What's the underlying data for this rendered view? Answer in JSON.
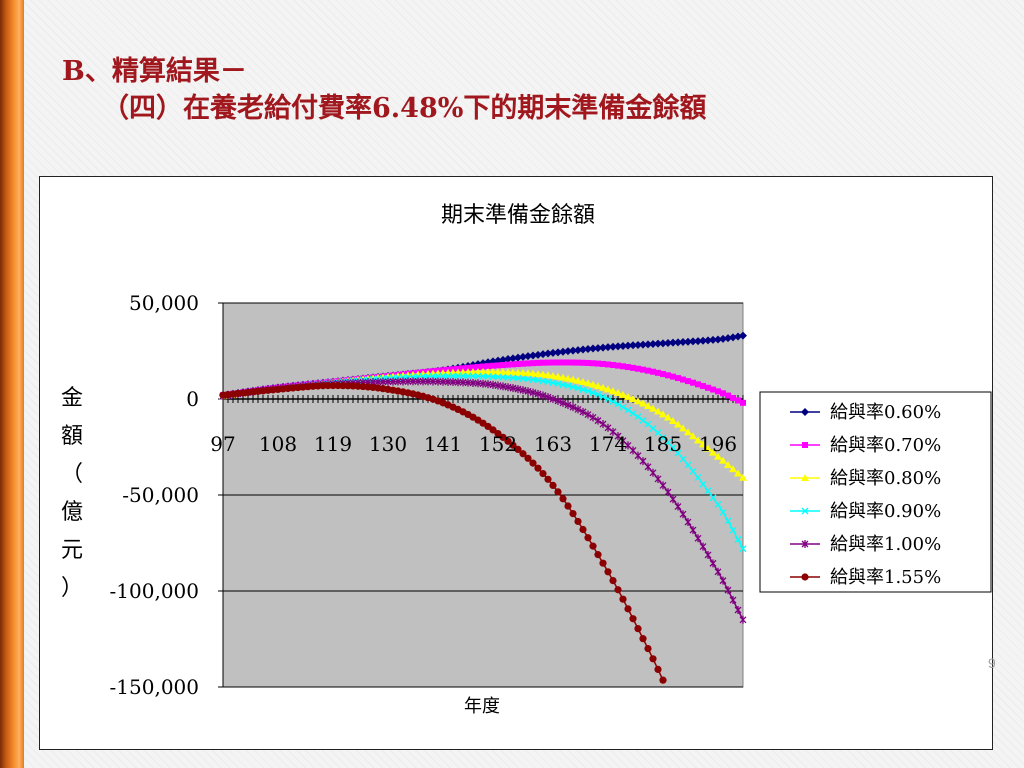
{
  "slide": {
    "title_line1": "B、精算結果－",
    "title_line2": "（四）在養老給付費率6.48%下的期末準備金餘額",
    "page_number": "9",
    "accent_color": "#a0181e"
  },
  "chart_data": {
    "type": "line",
    "title": "期末準備金餘額",
    "xlabel": "年度",
    "ylabel": "金額（億元）",
    "x_tick_labels": [
      "97",
      "108",
      "119",
      "130",
      "141",
      "152",
      "163",
      "174",
      "185",
      "196"
    ],
    "x_range": [
      97,
      201
    ],
    "y_tick_labels": [
      "50,000",
      "0",
      "-50,000",
      "-100,000",
      "-150,000"
    ],
    "y_ticks": [
      50000,
      0,
      -50000,
      -100000,
      -150000
    ],
    "ylim": [
      -150000,
      50000
    ],
    "grid": true,
    "plot_background": "#c0c0c0",
    "legend_position": "right",
    "series": [
      {
        "name": "給與率0.60%",
        "color": "#000080",
        "marker": "diamond",
        "points": [
          [
            97,
            2000
          ],
          [
            108,
            6000
          ],
          [
            119,
            9000
          ],
          [
            130,
            12000
          ],
          [
            141,
            15000
          ],
          [
            152,
            20000
          ],
          [
            163,
            24000
          ],
          [
            174,
            27000
          ],
          [
            185,
            29000
          ],
          [
            196,
            31000
          ],
          [
            201,
            33000
          ]
        ]
      },
      {
        "name": "給與率0.70%",
        "color": "#ff00ff",
        "marker": "square",
        "points": [
          [
            97,
            2000
          ],
          [
            108,
            6000
          ],
          [
            119,
            9000
          ],
          [
            130,
            12000
          ],
          [
            141,
            15000
          ],
          [
            152,
            17500
          ],
          [
            163,
            19000
          ],
          [
            174,
            18000
          ],
          [
            185,
            13000
          ],
          [
            196,
            4000
          ],
          [
            201,
            -2000
          ]
        ]
      },
      {
        "name": "給與率0.80%",
        "color": "#ffff00",
        "marker": "triangle",
        "points": [
          [
            97,
            1500
          ],
          [
            108,
            5500
          ],
          [
            119,
            8500
          ],
          [
            130,
            11500
          ],
          [
            141,
            13500
          ],
          [
            152,
            14000
          ],
          [
            163,
            12000
          ],
          [
            174,
            5000
          ],
          [
            185,
            -8000
          ],
          [
            196,
            -30000
          ],
          [
            201,
            -41000
          ]
        ]
      },
      {
        "name": "給與率0.90%",
        "color": "#00ffff",
        "marker": "x",
        "points": [
          [
            97,
            1500
          ],
          [
            108,
            5500
          ],
          [
            119,
            8500
          ],
          [
            130,
            11000
          ],
          [
            141,
            12000
          ],
          [
            152,
            11500
          ],
          [
            163,
            8500
          ],
          [
            174,
            0
          ],
          [
            185,
            -20000
          ],
          [
            196,
            -55000
          ],
          [
            201,
            -78000
          ]
        ]
      },
      {
        "name": "給與率1.00%",
        "color": "#800080",
        "marker": "star",
        "points": [
          [
            97,
            1500
          ],
          [
            108,
            5500
          ],
          [
            119,
            8000
          ],
          [
            130,
            9000
          ],
          [
            141,
            9000
          ],
          [
            152,
            7000
          ],
          [
            163,
            0
          ],
          [
            174,
            -15000
          ],
          [
            185,
            -45000
          ],
          [
            196,
            -90000
          ],
          [
            201,
            -115000
          ]
        ]
      },
      {
        "name": "給與率1.55%",
        "color": "#8b0000",
        "marker": "circle",
        "points": [
          [
            97,
            2000
          ],
          [
            108,
            5000
          ],
          [
            119,
            7000
          ],
          [
            130,
            5000
          ],
          [
            141,
            -2000
          ],
          [
            152,
            -18000
          ],
          [
            163,
            -45000
          ],
          [
            174,
            -90000
          ],
          [
            182,
            -130000
          ],
          [
            186,
            -152000
          ]
        ]
      }
    ]
  }
}
